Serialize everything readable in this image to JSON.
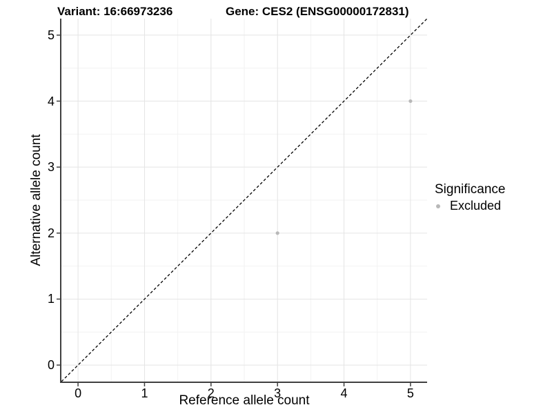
{
  "chart_data": {
    "type": "scatter",
    "titles": {
      "left": "Variant: 16:66973236",
      "right": "Gene: CES2 (ENSG00000172831)"
    },
    "xlabel": "Reference allele count",
    "ylabel": "Alternative allele count",
    "xlim": [
      -0.25,
      5.25
    ],
    "ylim": [
      -0.25,
      5.25
    ],
    "x_ticks": [
      0,
      1,
      2,
      3,
      4,
      5
    ],
    "y_ticks": [
      0,
      1,
      2,
      3,
      4,
      5
    ],
    "x_minor_ticks": [
      0.5,
      1.5,
      2.5,
      3.5,
      4.5
    ],
    "y_minor_ticks": [
      0.5,
      1.5,
      2.5,
      3.5,
      4.5
    ],
    "grid": "on",
    "reference_line": {
      "kind": "identity y=x",
      "style": "dashed",
      "color": "#000000"
    },
    "series": [
      {
        "name": "Excluded",
        "marker": "circle",
        "color": "#b8b8b8",
        "points": [
          [
            3,
            2
          ],
          [
            5,
            4
          ]
        ]
      }
    ],
    "legend": {
      "title": "Significance",
      "position": "right",
      "entries": [
        {
          "label": "Excluded",
          "color": "#b8b8b8"
        }
      ]
    },
    "colors": {
      "background": "#ffffff",
      "grid_major": "#e4e4e4",
      "grid_minor": "#f2f2f2",
      "axis": "#3f3f3f",
      "text": "#000000"
    }
  }
}
